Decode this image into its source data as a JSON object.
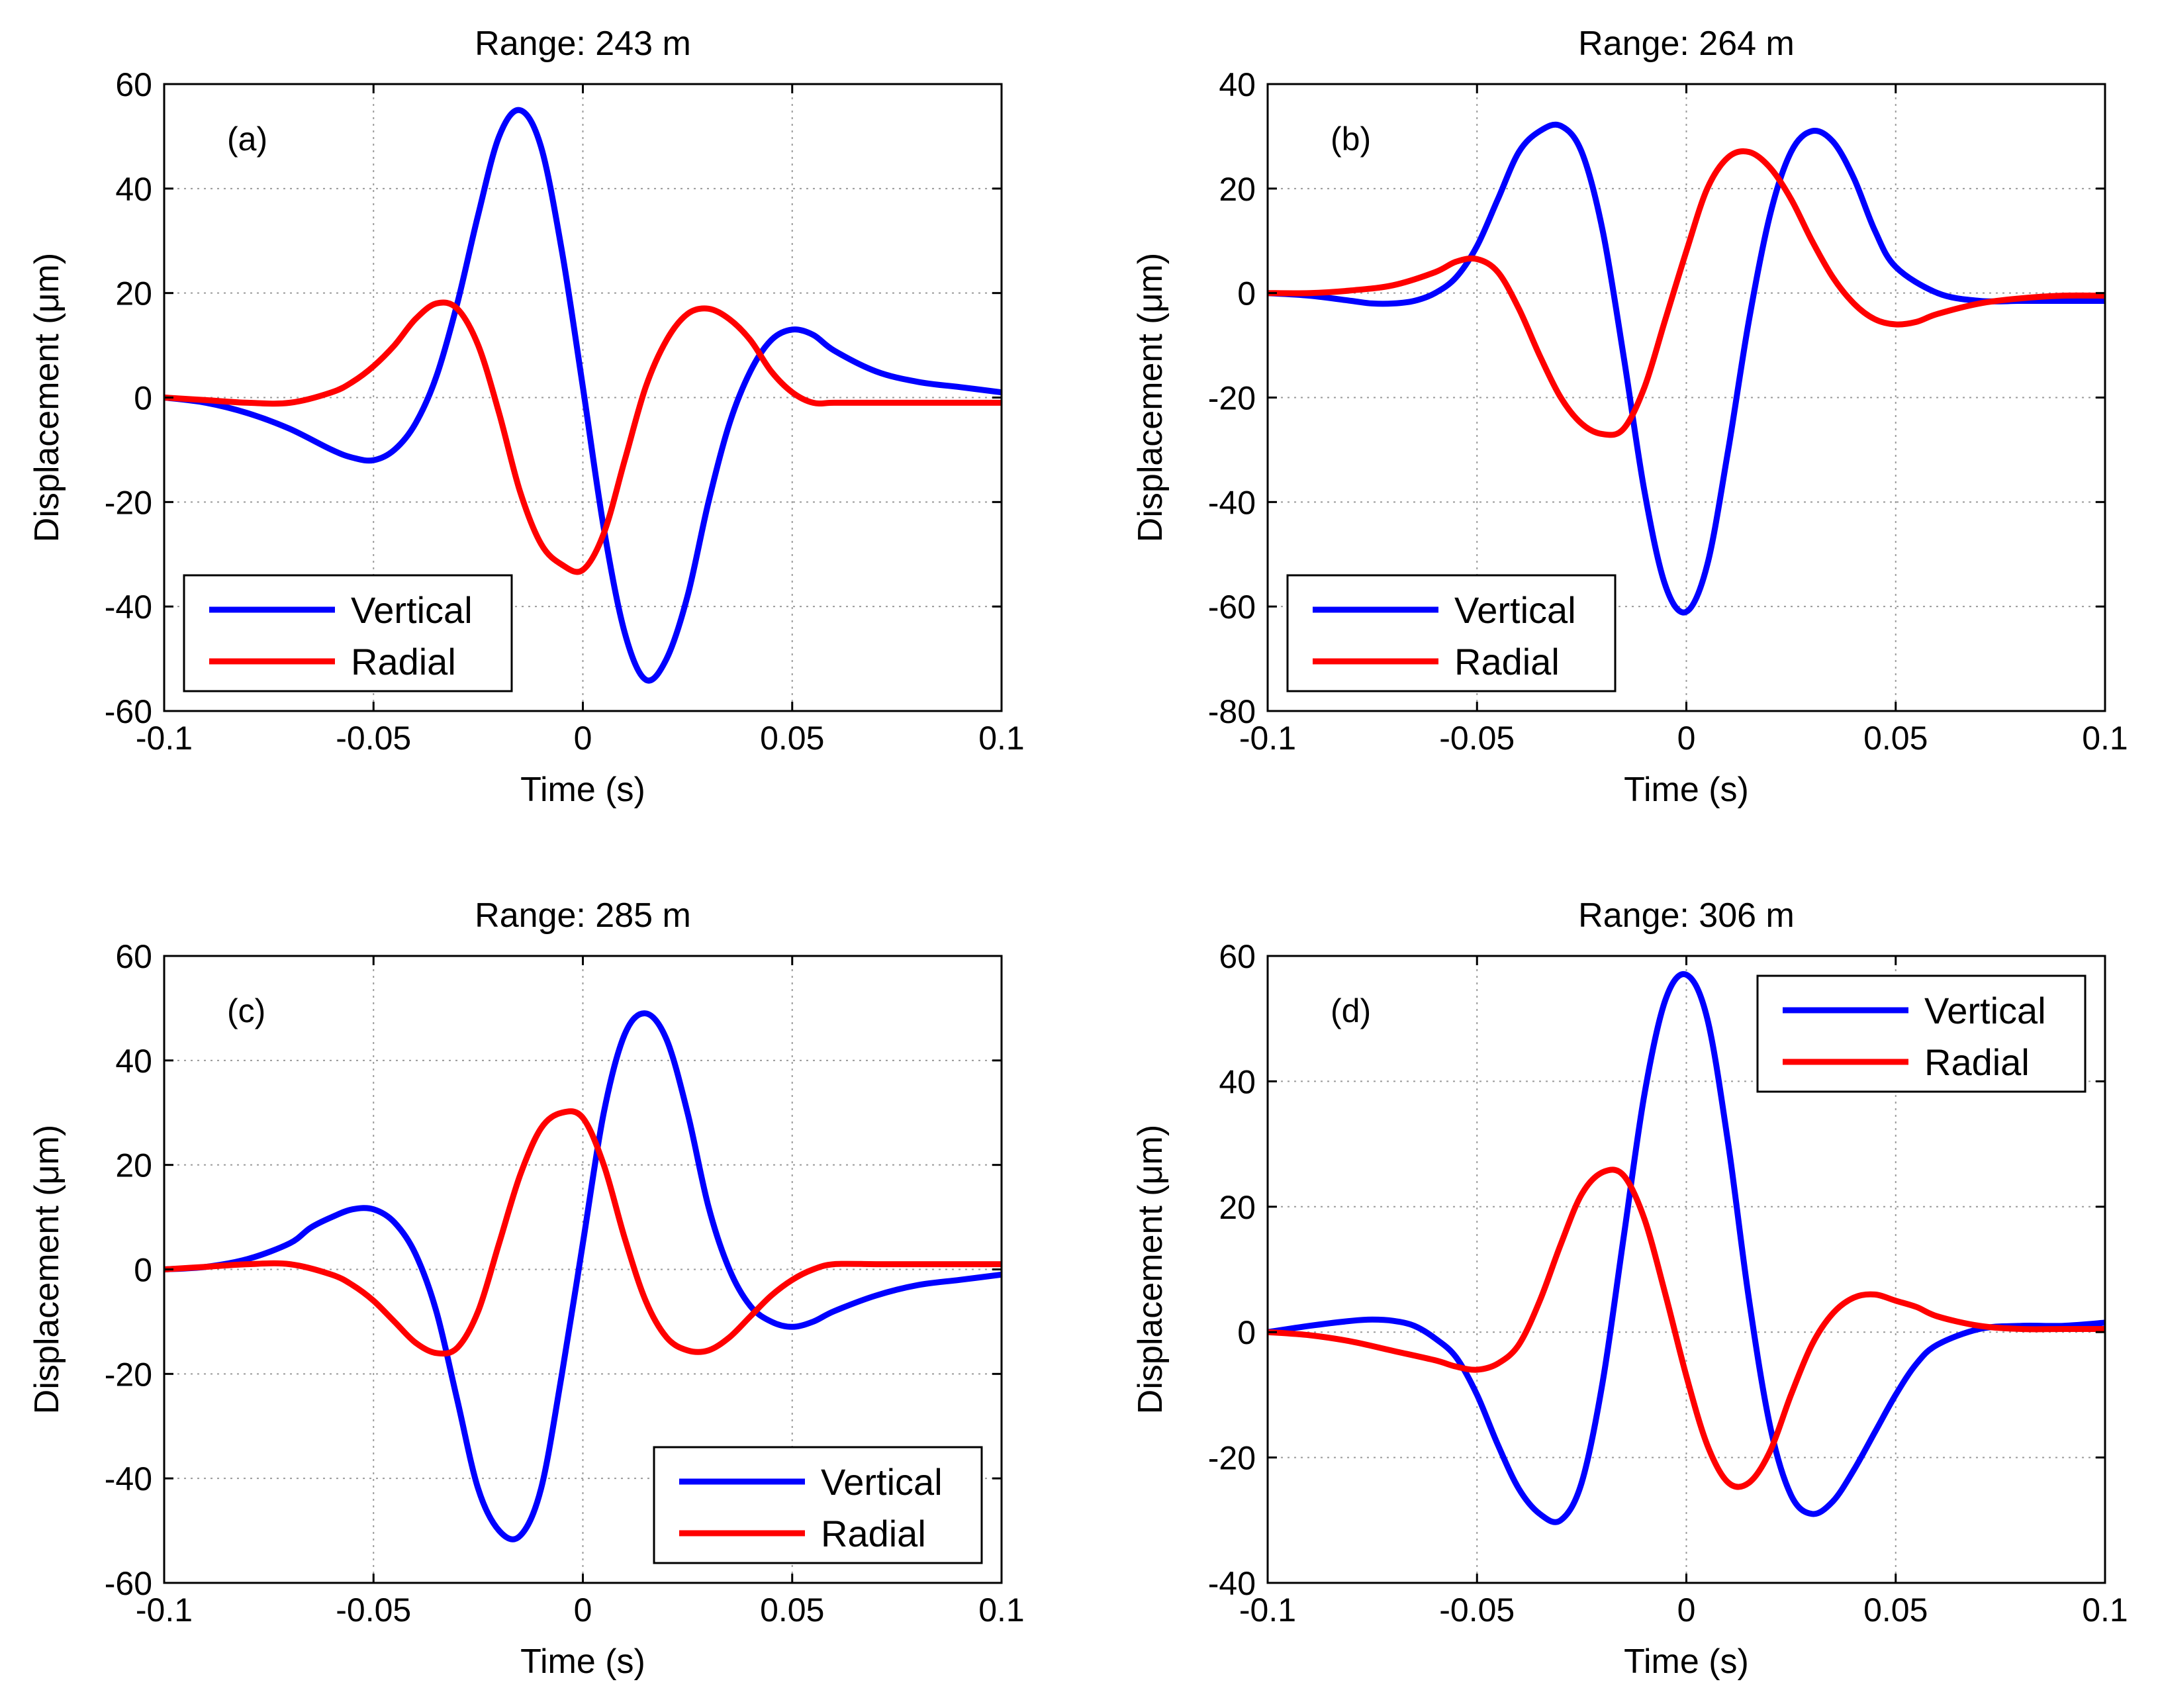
{
  "chart_data": [
    {
      "type": "line",
      "title": "Range: 243 m",
      "panel_label": "(a)",
      "xlabel": "Time (s)",
      "ylabel": "Displacement (μm)",
      "xlim": [
        -0.1,
        0.1
      ],
      "ylim": [
        -60,
        60
      ],
      "xticks": [
        -0.1,
        -0.05,
        0,
        0.05,
        0.1
      ],
      "xtick_labels": [
        "-0.1",
        "-0.05",
        "0",
        "0.05",
        "0.1"
      ],
      "yticks": [
        -60,
        -40,
        -20,
        0,
        20,
        40,
        60
      ],
      "ytick_labels": [
        "-60",
        "-40",
        "-20",
        "0",
        "20",
        "40",
        "60"
      ],
      "grid": true,
      "legend_position": "bottom-left",
      "series": [
        {
          "name": "Vertical",
          "color": "#0000ff",
          "x": [
            -0.1,
            -0.09,
            -0.08,
            -0.07,
            -0.06,
            -0.055,
            -0.05,
            -0.045,
            -0.04,
            -0.035,
            -0.03,
            -0.025,
            -0.02,
            -0.015,
            -0.01,
            -0.005,
            0,
            0.005,
            0.01,
            0.015,
            0.02,
            0.025,
            0.03,
            0.035,
            0.04,
            0.045,
            0.05,
            0.055,
            0.06,
            0.07,
            0.08,
            0.09,
            0.1
          ],
          "y": [
            0,
            -1,
            -3,
            -6,
            -10,
            -11.5,
            -12,
            -10,
            -5,
            4,
            18,
            35,
            50,
            55,
            48,
            28,
            2,
            -25,
            -45,
            -54,
            -50,
            -38,
            -20,
            -5,
            5,
            11,
            13,
            12,
            9,
            5,
            3,
            2,
            1
          ]
        },
        {
          "name": "Radial",
          "color": "#ff0000",
          "x": [
            -0.1,
            -0.09,
            -0.08,
            -0.07,
            -0.06,
            -0.055,
            -0.05,
            -0.045,
            -0.04,
            -0.035,
            -0.03,
            -0.025,
            -0.02,
            -0.015,
            -0.01,
            -0.005,
            0,
            0.005,
            0.01,
            0.015,
            0.02,
            0.025,
            0.03,
            0.035,
            0.04,
            0.045,
            0.05,
            0.055,
            0.06,
            0.07,
            0.08,
            0.09,
            0.1
          ],
          "y": [
            0,
            -0.5,
            -1,
            -1,
            1,
            3,
            6,
            10,
            15,
            18,
            17,
            10,
            -3,
            -18,
            -28,
            -32,
            -33,
            -26,
            -12,
            2,
            11,
            16,
            17,
            15,
            11,
            5,
            1,
            -1,
            -1,
            -1,
            -1,
            -1,
            -1
          ]
        }
      ]
    },
    {
      "type": "line",
      "title": "Range: 264 m",
      "panel_label": "(b)",
      "xlabel": "Time (s)",
      "ylabel": "Displacement (μm)",
      "xlim": [
        -0.1,
        0.1
      ],
      "ylim": [
        -80,
        40
      ],
      "xticks": [
        -0.1,
        -0.05,
        0,
        0.05,
        0.1
      ],
      "xtick_labels": [
        "-0.1",
        "-0.05",
        "0",
        "0.05",
        "0.1"
      ],
      "yticks": [
        -80,
        -60,
        -40,
        -20,
        0,
        20,
        40
      ],
      "ytick_labels": [
        "-80",
        "-60",
        "-40",
        "-20",
        "0",
        "20",
        "40"
      ],
      "grid": true,
      "legend_position": "bottom-left",
      "series": [
        {
          "name": "Vertical",
          "color": "#0000ff",
          "x": [
            -0.1,
            -0.09,
            -0.08,
            -0.075,
            -0.07,
            -0.065,
            -0.06,
            -0.055,
            -0.05,
            -0.045,
            -0.04,
            -0.035,
            -0.03,
            -0.025,
            -0.02,
            -0.015,
            -0.01,
            -0.005,
            0,
            0.005,
            0.01,
            0.015,
            0.02,
            0.025,
            0.03,
            0.035,
            0.04,
            0.045,
            0.05,
            0.06,
            0.07,
            0.08,
            0.09,
            0.1
          ],
          "y": [
            0,
            -0.5,
            -1.5,
            -2,
            -2,
            -1.5,
            0,
            3,
            9,
            18,
            27,
            31,
            32,
            27,
            12,
            -12,
            -38,
            -56,
            -61,
            -52,
            -30,
            -5,
            15,
            27,
            31,
            29,
            22,
            12,
            5,
            0,
            -1.5,
            -1.5,
            -1.5,
            -1.5
          ]
        },
        {
          "name": "Radial",
          "color": "#ff0000",
          "x": [
            -0.1,
            -0.09,
            -0.08,
            -0.07,
            -0.06,
            -0.055,
            -0.05,
            -0.045,
            -0.04,
            -0.035,
            -0.03,
            -0.025,
            -0.02,
            -0.015,
            -0.01,
            -0.005,
            0,
            0.005,
            0.01,
            0.015,
            0.02,
            0.025,
            0.03,
            0.035,
            0.04,
            0.045,
            0.05,
            0.055,
            0.06,
            0.07,
            0.08,
            0.09,
            0.1
          ],
          "y": [
            0,
            0,
            0.5,
            1.5,
            4,
            6,
            6.5,
            4,
            -3,
            -12,
            -20,
            -25,
            -27,
            -26,
            -18,
            -5,
            8,
            20,
            26,
            27,
            24,
            18,
            10,
            3,
            -2,
            -5,
            -6,
            -5.5,
            -4,
            -2,
            -1,
            -0.5,
            -0.5
          ]
        }
      ]
    },
    {
      "type": "line",
      "title": "Range: 285 m",
      "panel_label": "(c)",
      "xlabel": "Time (s)",
      "ylabel": "Displacement (μm)",
      "xlim": [
        -0.1,
        0.1
      ],
      "ylim": [
        -60,
        60
      ],
      "xticks": [
        -0.1,
        -0.05,
        0,
        0.05,
        0.1
      ],
      "xtick_labels": [
        "-0.1",
        "-0.05",
        "0",
        "0.05",
        "0.1"
      ],
      "yticks": [
        -60,
        -40,
        -20,
        0,
        20,
        40,
        60
      ],
      "ytick_labels": [
        "-60",
        "-40",
        "-20",
        "0",
        "20",
        "40",
        "60"
      ],
      "grid": true,
      "legend_position": "bottom-right",
      "series": [
        {
          "name": "Vertical",
          "color": "#0000ff",
          "x": [
            -0.1,
            -0.09,
            -0.08,
            -0.07,
            -0.065,
            -0.06,
            -0.055,
            -0.05,
            -0.045,
            -0.04,
            -0.035,
            -0.03,
            -0.025,
            -0.02,
            -0.015,
            -0.01,
            -0.005,
            0,
            0.005,
            0.01,
            0.015,
            0.02,
            0.025,
            0.03,
            0.035,
            0.04,
            0.045,
            0.05,
            0.055,
            0.06,
            0.07,
            0.08,
            0.09,
            0.1
          ],
          "y": [
            0,
            0.5,
            2,
            5,
            8,
            10,
            11.5,
            11.5,
            9,
            3,
            -8,
            -25,
            -42,
            -50,
            -51,
            -42,
            -20,
            5,
            30,
            45,
            49,
            44,
            30,
            12,
            0,
            -7,
            -10,
            -11,
            -10,
            -8,
            -5,
            -3,
            -2,
            -1
          ]
        },
        {
          "name": "Radial",
          "color": "#ff0000",
          "x": [
            -0.1,
            -0.09,
            -0.08,
            -0.07,
            -0.06,
            -0.055,
            -0.05,
            -0.045,
            -0.04,
            -0.035,
            -0.03,
            -0.025,
            -0.02,
            -0.015,
            -0.01,
            -0.005,
            0,
            0.005,
            0.01,
            0.015,
            0.02,
            0.025,
            0.03,
            0.035,
            0.04,
            0.045,
            0.05,
            0.055,
            0.06,
            0.07,
            0.08,
            0.09,
            0.1
          ],
          "y": [
            0,
            0.5,
            1,
            1,
            -1,
            -3,
            -6,
            -10,
            -14,
            -16,
            -15,
            -8,
            5,
            18,
            27,
            30,
            29,
            20,
            6,
            -6,
            -13,
            -15.5,
            -15.5,
            -13,
            -9,
            -5,
            -2,
            0,
            1,
            1,
            1,
            1,
            1
          ]
        }
      ]
    },
    {
      "type": "line",
      "title": "Range: 306 m",
      "panel_label": "(d)",
      "xlabel": "Time (s)",
      "ylabel": "Displacement (μm)",
      "xlim": [
        -0.1,
        0.1
      ],
      "ylim": [
        -40,
        60
      ],
      "xticks": [
        -0.1,
        -0.05,
        0,
        0.05,
        0.1
      ],
      "xtick_labels": [
        "-0.1",
        "-0.05",
        "0",
        "0.05",
        "0.1"
      ],
      "yticks": [
        -40,
        -20,
        0,
        20,
        40,
        60
      ],
      "ytick_labels": [
        "-40",
        "-20",
        "0",
        "20",
        "40",
        "60"
      ],
      "grid": true,
      "legend_position": "top-right",
      "series": [
        {
          "name": "Vertical",
          "color": "#0000ff",
          "x": [
            -0.1,
            -0.09,
            -0.08,
            -0.075,
            -0.07,
            -0.065,
            -0.06,
            -0.055,
            -0.05,
            -0.045,
            -0.04,
            -0.035,
            -0.03,
            -0.025,
            -0.02,
            -0.015,
            -0.01,
            -0.005,
            0,
            0.005,
            0.01,
            0.015,
            0.02,
            0.025,
            0.03,
            0.035,
            0.04,
            0.045,
            0.05,
            0.055,
            0.06,
            0.07,
            0.08,
            0.09,
            0.1
          ],
          "y": [
            0,
            1,
            1.8,
            2,
            1.8,
            1,
            -1,
            -4,
            -10,
            -18,
            -25,
            -29,
            -30,
            -24,
            -8,
            15,
            38,
            53,
            57,
            50,
            30,
            5,
            -15,
            -26,
            -29,
            -27,
            -22,
            -16,
            -10,
            -5,
            -2,
            0.5,
            1,
            1,
            1.5
          ]
        },
        {
          "name": "Radial",
          "color": "#ff0000",
          "x": [
            -0.1,
            -0.09,
            -0.08,
            -0.07,
            -0.06,
            -0.055,
            -0.05,
            -0.045,
            -0.04,
            -0.035,
            -0.03,
            -0.025,
            -0.02,
            -0.015,
            -0.01,
            -0.005,
            0,
            0.005,
            0.01,
            0.015,
            0.02,
            0.025,
            0.03,
            0.035,
            0.04,
            0.045,
            0.05,
            0.055,
            0.06,
            0.07,
            0.08,
            0.09,
            0.1
          ],
          "y": [
            0,
            -0.5,
            -1.5,
            -3,
            -4.5,
            -5.5,
            -6,
            -5,
            -2,
            5,
            14,
            22,
            25.5,
            25,
            18,
            6,
            -7,
            -18,
            -24,
            -24,
            -19,
            -10,
            -2,
            3,
            5.5,
            6,
            5,
            4,
            2.5,
            1,
            0.5,
            0.5,
            0.5
          ]
        }
      ]
    }
  ]
}
